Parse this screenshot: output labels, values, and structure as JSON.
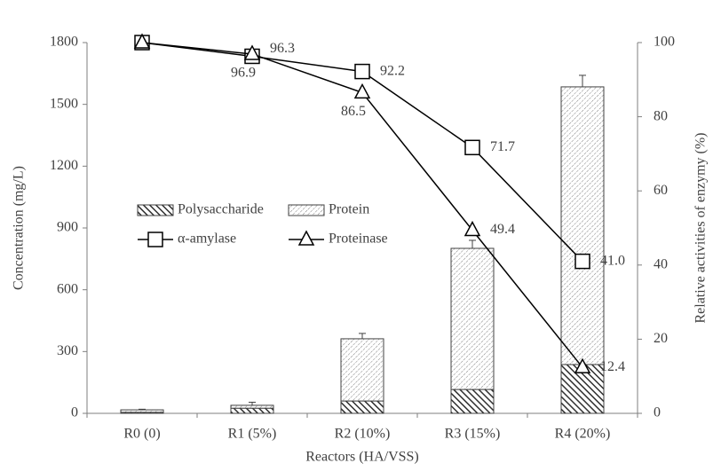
{
  "chart_data": {
    "type": "combo",
    "x_label": "Reactors (HA/VSS)",
    "y_label": "Concentration (mg/L)",
    "y2_label": "Relative activities of enzymy (%)",
    "categories": [
      "R0 (0)",
      "R1 (5%)",
      "R2 (10%)",
      "R3 (15%)",
      "R4 (20%)"
    ],
    "ylim": [
      0,
      1800
    ],
    "yticks": [
      0,
      300,
      600,
      900,
      1200,
      1500,
      1800
    ],
    "y2lim": [
      0,
      100
    ],
    "y2ticks": [
      0,
      20,
      40,
      60,
      80,
      100
    ],
    "legend": "center-left",
    "series": [
      {
        "name": "Polysaccharide",
        "type": "bar",
        "color": "#404040",
        "values": [
          5,
          25,
          60,
          116,
          237
        ],
        "errors": [
          2,
          5,
          10,
          15,
          20
        ]
      },
      {
        "name": "Protein",
        "type": "bar",
        "color": "#808080",
        "values": [
          12,
          14,
          302,
          685,
          1348
        ],
        "errors": [
          3,
          15,
          26,
          39,
          56
        ]
      },
      {
        "name": "α-amylase",
        "type": "line",
        "axis": "y2",
        "marker": "square",
        "color": "#000000",
        "values": [
          100,
          96.3,
          92.2,
          71.7,
          41.0
        ],
        "value_labels": [
          null,
          "96.3",
          "92.2",
          "71.7",
          "41.0"
        ]
      },
      {
        "name": "Proteinase",
        "type": "line",
        "axis": "y2",
        "marker": "triangle",
        "color": "#000000",
        "values": [
          100,
          96.9,
          86.5,
          49.4,
          12.4
        ],
        "value_labels": [
          null,
          "96.9",
          "86.5",
          "49.4",
          "12.4"
        ]
      }
    ]
  }
}
